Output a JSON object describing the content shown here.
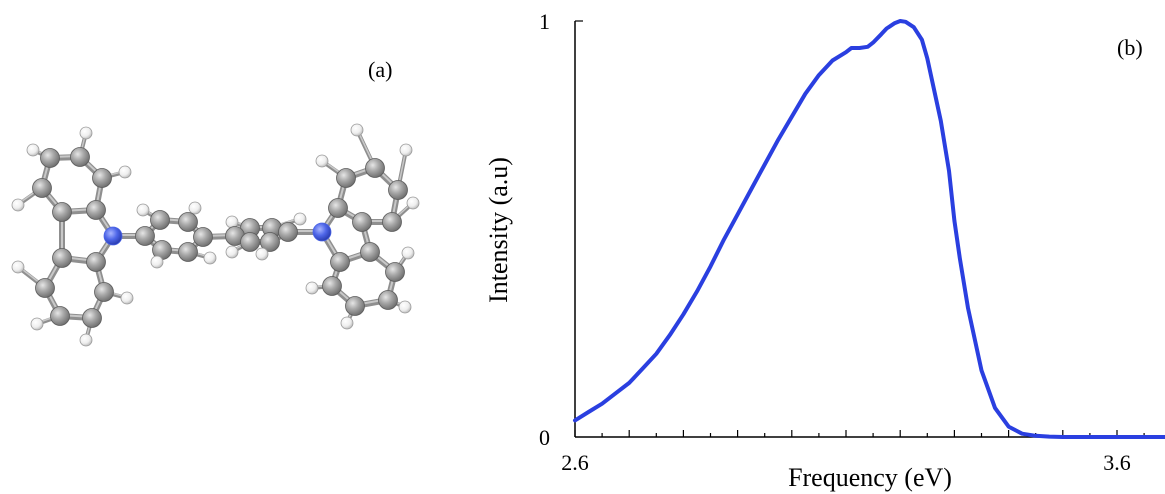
{
  "panel_a": {
    "label": "(a)",
    "molecule": {
      "carbon_color": "#8c8c8c",
      "hydrogen_color": "#f2f2f2",
      "nitrogen_color": "#4a64e6"
    }
  },
  "chart_data": {
    "type": "line",
    "panel_label": "(b)",
    "title": "",
    "xlabel": "Frequency (eV)",
    "ylabel": "Intensity (a.u)",
    "xlim": [
      2.6,
      3.7
    ],
    "ylim": [
      0,
      1
    ],
    "xticks_labeled": [
      {
        "value": 2.6,
        "label": "2.6"
      },
      {
        "value": 3.6,
        "label": "3.6"
      }
    ],
    "xticks_major": [
      2.6,
      2.7,
      2.8,
      2.9,
      3.0,
      3.1,
      3.2,
      3.3,
      3.4,
      3.5,
      3.6,
      3.7
    ],
    "yticks_labeled": [
      {
        "value": 0,
        "label": "0"
      },
      {
        "value": 1,
        "label": "1"
      }
    ],
    "grid": false,
    "legend": false,
    "line_color": "#2a3fe0",
    "series": [
      {
        "x": [
          2.6,
          2.625,
          2.65,
          2.675,
          2.7,
          2.725,
          2.75,
          2.775,
          2.8,
          2.825,
          2.85,
          2.875,
          2.9,
          2.925,
          2.95,
          2.975,
          3.0,
          3.025,
          3.05,
          3.075,
          3.1,
          3.11,
          3.125,
          3.14,
          3.15,
          3.165,
          3.175,
          3.19,
          3.2,
          3.21,
          3.225,
          3.24,
          3.25,
          3.26,
          3.275,
          3.29,
          3.3,
          3.31,
          3.325,
          3.35,
          3.375,
          3.4,
          3.425,
          3.45,
          3.475,
          3.5,
          3.55,
          3.6,
          3.65,
          3.7
        ],
        "y": [
          0.04,
          0.06,
          0.08,
          0.105,
          0.13,
          0.165,
          0.2,
          0.245,
          0.295,
          0.35,
          0.41,
          0.475,
          0.535,
          0.595,
          0.655,
          0.715,
          0.77,
          0.825,
          0.87,
          0.905,
          0.925,
          0.935,
          0.935,
          0.938,
          0.948,
          0.968,
          0.982,
          0.995,
          1.0,
          0.998,
          0.985,
          0.955,
          0.91,
          0.85,
          0.76,
          0.64,
          0.52,
          0.43,
          0.31,
          0.16,
          0.07,
          0.025,
          0.008,
          0.003,
          0.001,
          0.0,
          0.0,
          0.0,
          0.0,
          0.0
        ]
      }
    ]
  }
}
